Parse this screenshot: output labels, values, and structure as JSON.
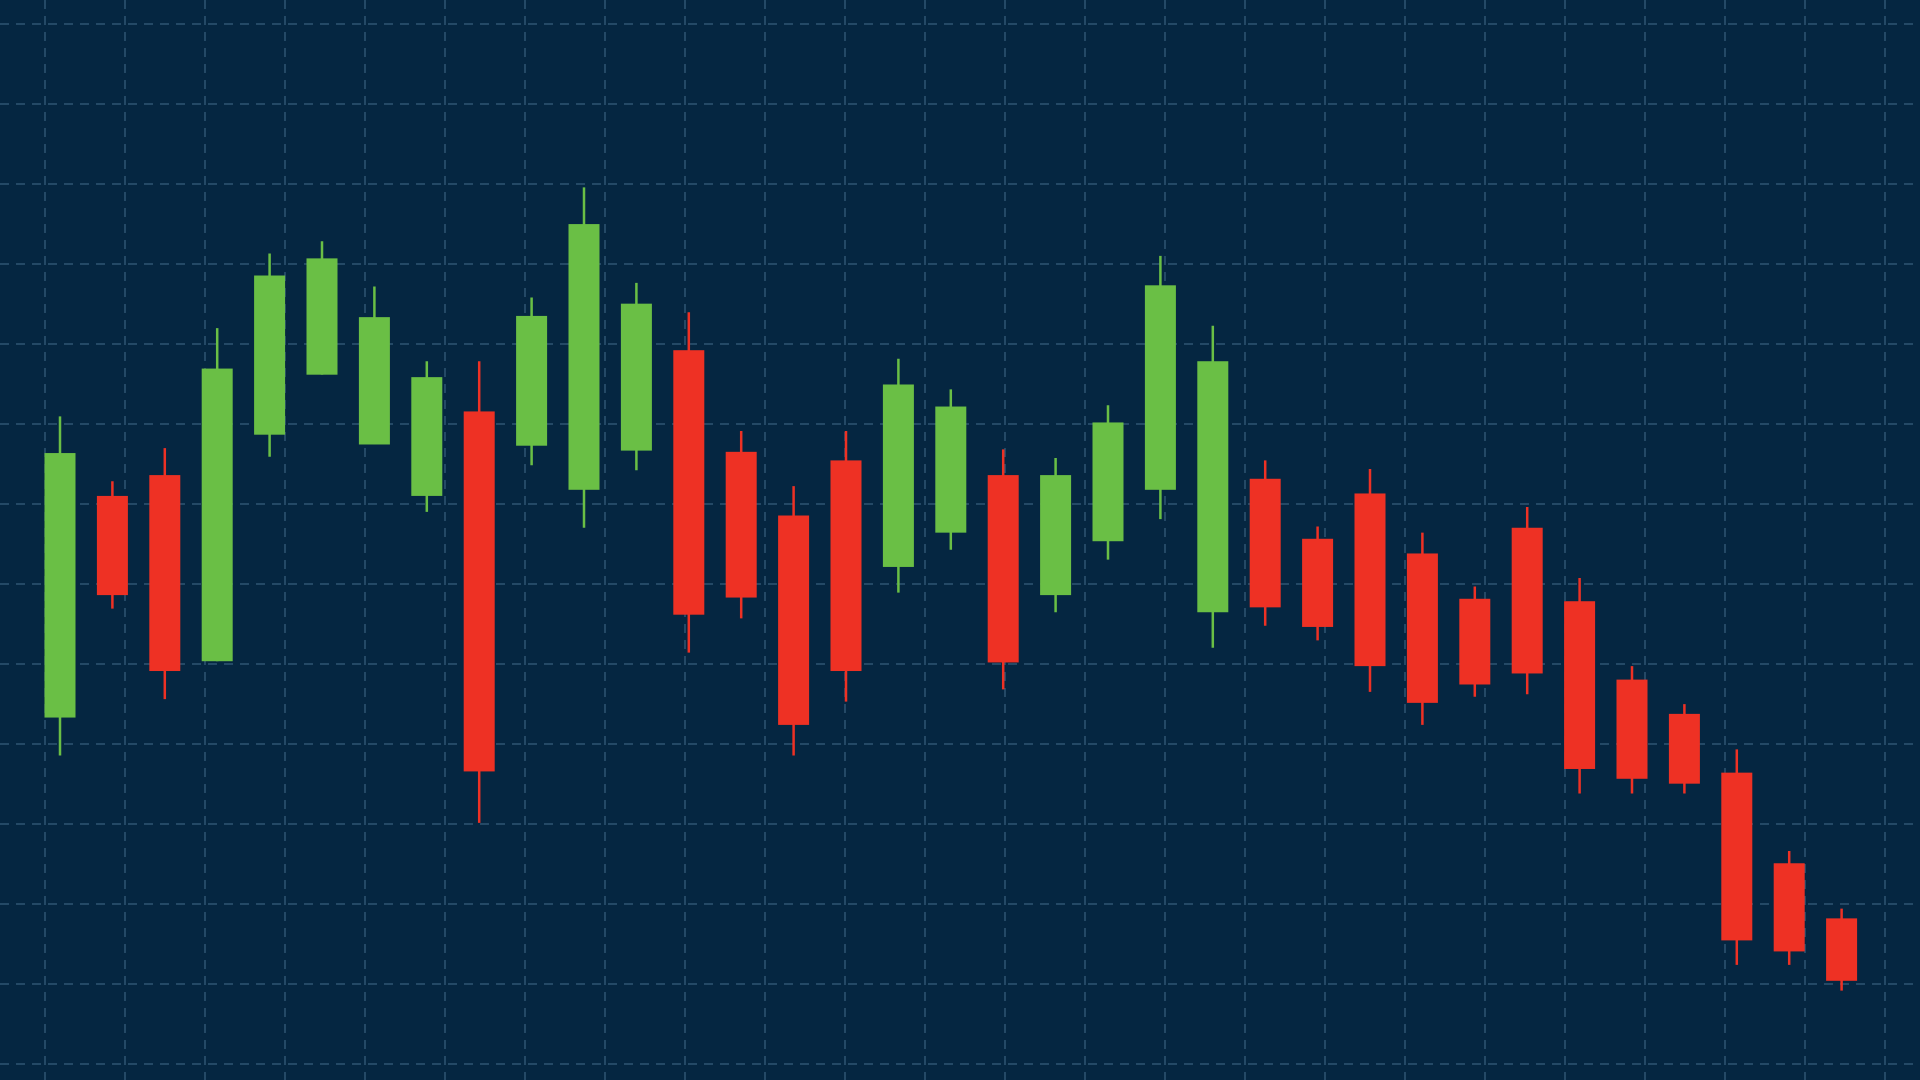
{
  "chart_data": {
    "type": "candlestick",
    "title": "",
    "xlabel": "",
    "ylabel": "",
    "ylim": [
      0,
      88.2
    ],
    "grid": true,
    "axes_visible": false,
    "colors": {
      "background": "#052641",
      "up": "#6abf45",
      "down": "#ee3124",
      "grid": "#2e5573"
    },
    "candles": [
      {
        "o": 29.6,
        "h": 54.2,
        "l": 26.5,
        "c": 51.2
      },
      {
        "o": 47.7,
        "h": 48.9,
        "l": 38.5,
        "c": 39.6
      },
      {
        "o": 49.4,
        "h": 51.6,
        "l": 31.1,
        "c": 33.4
      },
      {
        "o": 34.2,
        "h": 61.4,
        "l": 34.2,
        "c": 58.1
      },
      {
        "o": 52.7,
        "h": 67.5,
        "l": 50.9,
        "c": 65.7
      },
      {
        "o": 57.6,
        "h": 68.5,
        "l": 57.6,
        "c": 67.1
      },
      {
        "o": 51.9,
        "h": 64.8,
        "l": 51.9,
        "c": 62.3
      },
      {
        "o": 47.7,
        "h": 58.7,
        "l": 46.4,
        "c": 57.4
      },
      {
        "o": 54.6,
        "h": 58.7,
        "l": 21.0,
        "c": 25.2
      },
      {
        "o": 51.8,
        "h": 63.9,
        "l": 50.2,
        "c": 62.4
      },
      {
        "o": 48.2,
        "h": 72.9,
        "l": 45.1,
        "c": 69.9
      },
      {
        "o": 51.4,
        "h": 65.1,
        "l": 49.8,
        "c": 63.4
      },
      {
        "o": 59.6,
        "h": 62.7,
        "l": 34.9,
        "c": 38.0
      },
      {
        "o": 51.3,
        "h": 53.0,
        "l": 37.7,
        "c": 39.4
      },
      {
        "o": 46.1,
        "h": 48.5,
        "l": 26.5,
        "c": 29.0
      },
      {
        "o": 50.6,
        "h": 53.0,
        "l": 30.9,
        "c": 33.4
      },
      {
        "o": 41.9,
        "h": 58.9,
        "l": 39.8,
        "c": 56.8
      },
      {
        "o": 44.7,
        "h": 56.4,
        "l": 43.3,
        "c": 55.0
      },
      {
        "o": 49.4,
        "h": 51.5,
        "l": 31.9,
        "c": 34.1
      },
      {
        "o": 39.6,
        "h": 50.8,
        "l": 38.2,
        "c": 49.4
      },
      {
        "o": 44.0,
        "h": 55.1,
        "l": 42.5,
        "c": 53.7
      },
      {
        "o": 48.2,
        "h": 67.3,
        "l": 45.8,
        "c": 64.9
      },
      {
        "o": 38.2,
        "h": 61.6,
        "l": 35.3,
        "c": 58.7
      },
      {
        "o": 49.1,
        "h": 50.6,
        "l": 37.1,
        "c": 38.6
      },
      {
        "o": 44.2,
        "h": 45.2,
        "l": 35.9,
        "c": 37.0
      },
      {
        "o": 47.9,
        "h": 49.9,
        "l": 31.7,
        "c": 33.8
      },
      {
        "o": 43.0,
        "h": 44.7,
        "l": 29.0,
        "c": 30.8
      },
      {
        "o": 39.3,
        "h": 40.3,
        "l": 31.3,
        "c": 32.3
      },
      {
        "o": 45.1,
        "h": 46.8,
        "l": 31.5,
        "c": 33.2
      },
      {
        "o": 39.1,
        "h": 41.0,
        "l": 23.4,
        "c": 25.4
      },
      {
        "o": 32.7,
        "h": 33.8,
        "l": 23.4,
        "c": 24.6
      },
      {
        "o": 29.9,
        "h": 30.7,
        "l": 23.4,
        "c": 24.2
      },
      {
        "o": 25.1,
        "h": 27.0,
        "l": 9.4,
        "c": 11.4
      },
      {
        "o": 17.7,
        "h": 18.7,
        "l": 9.4,
        "c": 10.5
      },
      {
        "o": 13.2,
        "h": 14.0,
        "l": 7.3,
        "c": 8.1
      }
    ]
  }
}
